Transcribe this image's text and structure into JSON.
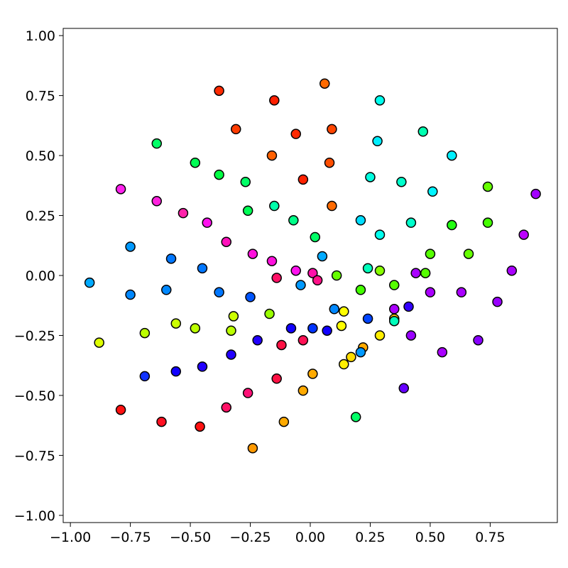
{
  "chart_data": {
    "type": "scatter",
    "title": "",
    "xlabel": "",
    "ylabel": "",
    "xlim": [
      -1.03,
      1.03
    ],
    "ylim": [
      -1.03,
      1.03
    ],
    "xticks": [
      -1.0,
      -0.75,
      -0.5,
      -0.25,
      0.0,
      0.25,
      0.5,
      0.75
    ],
    "xtick_labels": [
      "−1.00",
      "−0.75",
      "−0.50",
      "−0.25",
      "0.00",
      "0.25",
      "0.50",
      "0.75"
    ],
    "yticks": [
      -1.0,
      -0.75,
      -0.5,
      -0.25,
      0.0,
      0.25,
      0.5,
      0.75,
      1.0
    ],
    "ytick_labels": [
      "−1.00",
      "−0.75",
      "−0.50",
      "−0.25",
      "0.00",
      "0.25",
      "0.50",
      "0.75",
      "1.00"
    ],
    "grid": false,
    "legend": false,
    "marker_edge_color": "#000000",
    "points": [
      {
        "x": -0.38,
        "y": 0.77,
        "color": "#ff2a00"
      },
      {
        "x": 0.06,
        "y": 0.8,
        "color": "#ff6a00"
      },
      {
        "x": 0.29,
        "y": 0.73,
        "color": "#00ffee"
      },
      {
        "x": -0.15,
        "y": 0.73,
        "color": "#ff1f00"
      },
      {
        "x": -0.31,
        "y": 0.61,
        "color": "#ff3c00"
      },
      {
        "x": -0.06,
        "y": 0.59,
        "color": "#ff2800"
      },
      {
        "x": 0.09,
        "y": 0.61,
        "color": "#ff4500"
      },
      {
        "x": 0.47,
        "y": 0.6,
        "color": "#00ffb0"
      },
      {
        "x": -0.64,
        "y": 0.55,
        "color": "#00ff66"
      },
      {
        "x": 0.28,
        "y": 0.56,
        "color": "#00eeff"
      },
      {
        "x": 0.59,
        "y": 0.5,
        "color": "#00f0ff"
      },
      {
        "x": -0.16,
        "y": 0.5,
        "color": "#ff6000"
      },
      {
        "x": -0.48,
        "y": 0.47,
        "color": "#00ff55"
      },
      {
        "x": 0.08,
        "y": 0.47,
        "color": "#ff4e00"
      },
      {
        "x": -0.38,
        "y": 0.42,
        "color": "#00ff44"
      },
      {
        "x": 0.25,
        "y": 0.41,
        "color": "#00ffe0"
      },
      {
        "x": -0.03,
        "y": 0.4,
        "color": "#ff2200"
      },
      {
        "x": -0.27,
        "y": 0.39,
        "color": "#00ff66"
      },
      {
        "x": 0.38,
        "y": 0.39,
        "color": "#00ffcc"
      },
      {
        "x": 0.74,
        "y": 0.37,
        "color": "#66ff00"
      },
      {
        "x": -0.79,
        "y": 0.36,
        "color": "#ff22ee"
      },
      {
        "x": 0.51,
        "y": 0.35,
        "color": "#00f4ff"
      },
      {
        "x": 0.94,
        "y": 0.34,
        "color": "#a200ff"
      },
      {
        "x": -0.64,
        "y": 0.31,
        "color": "#ff22dd"
      },
      {
        "x": -0.15,
        "y": 0.29,
        "color": "#00ffaa"
      },
      {
        "x": 0.09,
        "y": 0.29,
        "color": "#ff6a00"
      },
      {
        "x": -0.26,
        "y": 0.27,
        "color": "#00ff55"
      },
      {
        "x": -0.53,
        "y": 0.26,
        "color": "#ff22aa"
      },
      {
        "x": 0.21,
        "y": 0.23,
        "color": "#00ddff"
      },
      {
        "x": -0.07,
        "y": 0.23,
        "color": "#00ff88"
      },
      {
        "x": -0.43,
        "y": 0.22,
        "color": "#ff11ee"
      },
      {
        "x": 0.42,
        "y": 0.22,
        "color": "#00ffcc"
      },
      {
        "x": 0.74,
        "y": 0.22,
        "color": "#44ff00"
      },
      {
        "x": 0.59,
        "y": 0.21,
        "color": "#22ff11"
      },
      {
        "x": 0.29,
        "y": 0.17,
        "color": "#00ffee"
      },
      {
        "x": 0.89,
        "y": 0.17,
        "color": "#bb00ff"
      },
      {
        "x": 0.02,
        "y": 0.16,
        "color": "#00ff66"
      },
      {
        "x": -0.35,
        "y": 0.14,
        "color": "#ff11bb"
      },
      {
        "x": -0.75,
        "y": 0.12,
        "color": "#0099ff"
      },
      {
        "x": -0.24,
        "y": 0.09,
        "color": "#ff11dd"
      },
      {
        "x": 0.5,
        "y": 0.09,
        "color": "#55ff00"
      },
      {
        "x": 0.66,
        "y": 0.09,
        "color": "#66ff00"
      },
      {
        "x": 0.05,
        "y": 0.08,
        "color": "#00aaff"
      },
      {
        "x": -0.58,
        "y": 0.07,
        "color": "#0077ff"
      },
      {
        "x": -0.16,
        "y": 0.06,
        "color": "#ff11dd"
      },
      {
        "x": 0.24,
        "y": 0.03,
        "color": "#00ffbb"
      },
      {
        "x": -0.45,
        "y": 0.03,
        "color": "#0077ff"
      },
      {
        "x": 0.84,
        "y": 0.02,
        "color": "#aa00ff"
      },
      {
        "x": -0.06,
        "y": 0.02,
        "color": "#ff11ee"
      },
      {
        "x": 0.29,
        "y": 0.02,
        "color": "#88ff00"
      },
      {
        "x": 0.44,
        "y": 0.01,
        "color": "#aa00ff"
      },
      {
        "x": 0.01,
        "y": 0.01,
        "color": "#ff11aa"
      },
      {
        "x": 0.48,
        "y": 0.01,
        "color": "#55ff00"
      },
      {
        "x": 0.11,
        "y": 0.0,
        "color": "#66ff00"
      },
      {
        "x": -0.14,
        "y": -0.01,
        "color": "#ff1166"
      },
      {
        "x": 0.03,
        "y": -0.02,
        "color": "#ff1188"
      },
      {
        "x": -0.92,
        "y": -0.03,
        "color": "#00aaff"
      },
      {
        "x": 0.35,
        "y": -0.04,
        "color": "#55ff00"
      },
      {
        "x": -0.04,
        "y": -0.04,
        "color": "#0099ff"
      },
      {
        "x": -0.6,
        "y": -0.06,
        "color": "#0088ff"
      },
      {
        "x": 0.21,
        "y": -0.06,
        "color": "#44ff00"
      },
      {
        "x": 0.5,
        "y": -0.07,
        "color": "#aa00ff"
      },
      {
        "x": 0.63,
        "y": -0.07,
        "color": "#aa00ff"
      },
      {
        "x": -0.38,
        "y": -0.07,
        "color": "#0077ff"
      },
      {
        "x": -0.75,
        "y": -0.08,
        "color": "#0088ff"
      },
      {
        "x": -0.25,
        "y": -0.09,
        "color": "#0055ff"
      },
      {
        "x": 0.78,
        "y": -0.11,
        "color": "#9900ff"
      },
      {
        "x": 0.41,
        "y": -0.13,
        "color": "#3300ff"
      },
      {
        "x": 0.35,
        "y": -0.14,
        "color": "#aa00ff"
      },
      {
        "x": 0.1,
        "y": -0.14,
        "color": "#0088ff"
      },
      {
        "x": 0.14,
        "y": -0.15,
        "color": "#ffff00"
      },
      {
        "x": -0.17,
        "y": -0.16,
        "color": "#99ff00"
      },
      {
        "x": -0.32,
        "y": -0.17,
        "color": "#ccff00"
      },
      {
        "x": 0.24,
        "y": -0.18,
        "color": "#0044ff"
      },
      {
        "x": 0.35,
        "y": -0.18,
        "color": "#ffcc00"
      },
      {
        "x": 0.35,
        "y": -0.19,
        "color": "#00ffbb"
      },
      {
        "x": -0.56,
        "y": -0.2,
        "color": "#ccff00"
      },
      {
        "x": 0.13,
        "y": -0.21,
        "color": "#ffff00"
      },
      {
        "x": 0.01,
        "y": -0.22,
        "color": "#0033ff"
      },
      {
        "x": -0.48,
        "y": -0.22,
        "color": "#bbff00"
      },
      {
        "x": -0.08,
        "y": -0.22,
        "color": "#1100ff"
      },
      {
        "x": 0.07,
        "y": -0.23,
        "color": "#1100ff"
      },
      {
        "x": -0.33,
        "y": -0.23,
        "color": "#bbff00"
      },
      {
        "x": -0.69,
        "y": -0.24,
        "color": "#bbff00"
      },
      {
        "x": 0.29,
        "y": -0.25,
        "color": "#ffee00"
      },
      {
        "x": 0.42,
        "y": -0.25,
        "color": "#9900ff"
      },
      {
        "x": 0.7,
        "y": -0.27,
        "color": "#8800ff"
      },
      {
        "x": -0.22,
        "y": -0.27,
        "color": "#2200ff"
      },
      {
        "x": -0.03,
        "y": -0.27,
        "color": "#ff1155"
      },
      {
        "x": -0.88,
        "y": -0.28,
        "color": "#ddff00"
      },
      {
        "x": -0.12,
        "y": -0.29,
        "color": "#ff1144"
      },
      {
        "x": 0.22,
        "y": -0.3,
        "color": "#ffaa00"
      },
      {
        "x": 0.21,
        "y": -0.32,
        "color": "#0099ff"
      },
      {
        "x": 0.55,
        "y": -0.32,
        "color": "#aa00ff"
      },
      {
        "x": -0.33,
        "y": -0.33,
        "color": "#2200ff"
      },
      {
        "x": 0.17,
        "y": -0.34,
        "color": "#ffdd00"
      },
      {
        "x": 0.14,
        "y": -0.37,
        "color": "#ffee00"
      },
      {
        "x": -0.45,
        "y": -0.38,
        "color": "#2200ff"
      },
      {
        "x": -0.56,
        "y": -0.4,
        "color": "#1100ff"
      },
      {
        "x": 0.01,
        "y": -0.41,
        "color": "#ffaa00"
      },
      {
        "x": -0.69,
        "y": -0.42,
        "color": "#1133ff"
      },
      {
        "x": -0.14,
        "y": -0.43,
        "color": "#ff1144"
      },
      {
        "x": 0.39,
        "y": -0.47,
        "color": "#6600ff"
      },
      {
        "x": -0.03,
        "y": -0.48,
        "color": "#ffaa00"
      },
      {
        "x": -0.26,
        "y": -0.49,
        "color": "#ff1177"
      },
      {
        "x": -0.35,
        "y": -0.55,
        "color": "#ff1166"
      },
      {
        "x": -0.79,
        "y": -0.56,
        "color": "#ff1111"
      },
      {
        "x": 0.19,
        "y": -0.59,
        "color": "#00ff66"
      },
      {
        "x": -0.62,
        "y": -0.61,
        "color": "#ff1122"
      },
      {
        "x": -0.11,
        "y": -0.61,
        "color": "#ffaa00"
      },
      {
        "x": -0.46,
        "y": -0.63,
        "color": "#ff1111"
      },
      {
        "x": -0.24,
        "y": -0.72,
        "color": "#ff9900"
      }
    ]
  }
}
